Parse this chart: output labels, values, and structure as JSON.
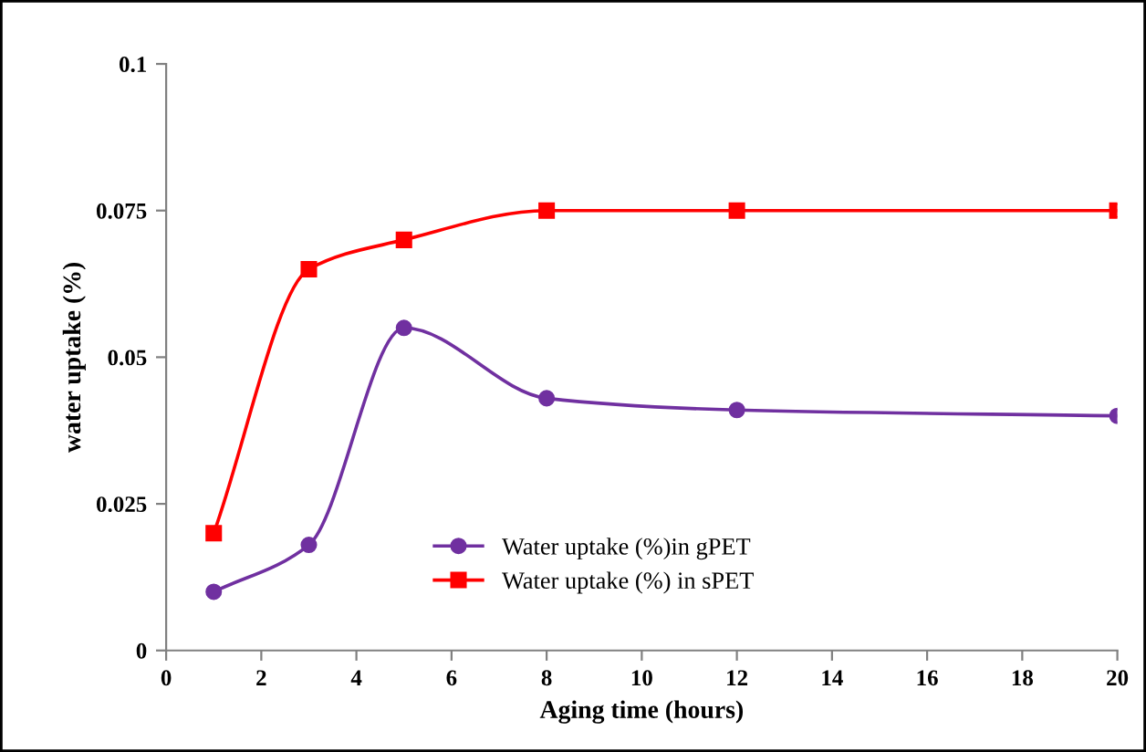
{
  "chart_data": {
    "type": "line",
    "xlabel": "Aging time (hours)",
    "ylabel": "water uptake (%)",
    "x": [
      1,
      3,
      5,
      8,
      12,
      20
    ],
    "series": [
      {
        "name": "Water uptake (%)in gPET",
        "color": "#7030a0",
        "marker": "circle",
        "values": [
          0.01,
          0.018,
          0.055,
          0.043,
          0.041,
          0.04
        ]
      },
      {
        "name": "Water uptake (%) in sPET",
        "color": "#ff0000",
        "marker": "square",
        "values": [
          0.02,
          0.065,
          0.07,
          0.075,
          0.075,
          0.075
        ]
      }
    ],
    "xlim": [
      0,
      20
    ],
    "ylim": [
      0,
      0.1
    ],
    "xticks": [
      0,
      2,
      4,
      6,
      8,
      10,
      12,
      14,
      16,
      18,
      20
    ],
    "yticks": [
      0,
      0.025,
      0.05,
      0.075,
      0.1
    ],
    "grid": false,
    "legend": "bottom",
    "line_style": "solid"
  }
}
